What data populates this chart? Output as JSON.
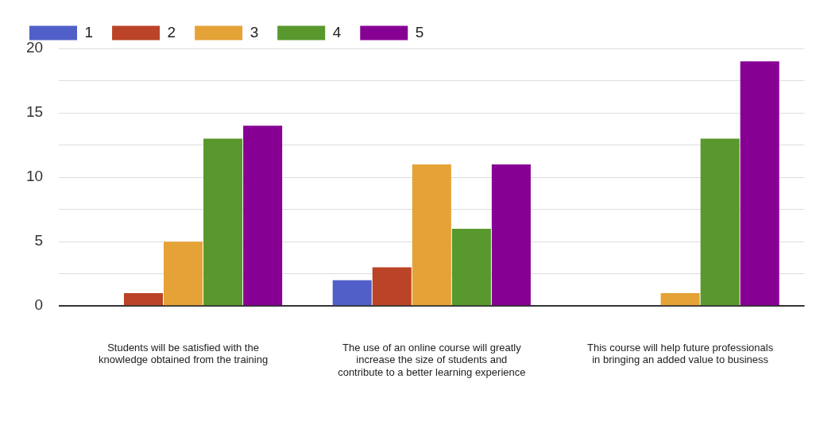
{
  "chart_data": {
    "type": "bar",
    "categories": [
      "Students will be satisfied with the knowledge obtained from the training",
      "The use of an online course will greatly increase the size of students and contribute to a better learning experience",
      "This course will help future professionals in bringing an added value to business"
    ],
    "series": [
      {
        "name": "1",
        "color": "#5160c8",
        "values": [
          0,
          2,
          0
        ]
      },
      {
        "name": "2",
        "color": "#bb4327",
        "values": [
          1,
          3,
          0
        ]
      },
      {
        "name": "3",
        "color": "#e5a236",
        "values": [
          5,
          11,
          1
        ]
      },
      {
        "name": "4",
        "color": "#58982c",
        "values": [
          13,
          6,
          13
        ]
      },
      {
        "name": "5",
        "color": "#870094",
        "values": [
          14,
          11,
          19
        ]
      }
    ],
    "ylim": [
      0,
      20
    ],
    "yticks": [
      0,
      {
        "value": 2.5,
        "label": null
      },
      5,
      {
        "value": 7.5,
        "label": null
      },
      10,
      {
        "value": 12.5,
        "label": null
      },
      15,
      {
        "value": 17.5,
        "label": null
      },
      20
    ],
    "grid": "y",
    "legend": "top left"
  }
}
